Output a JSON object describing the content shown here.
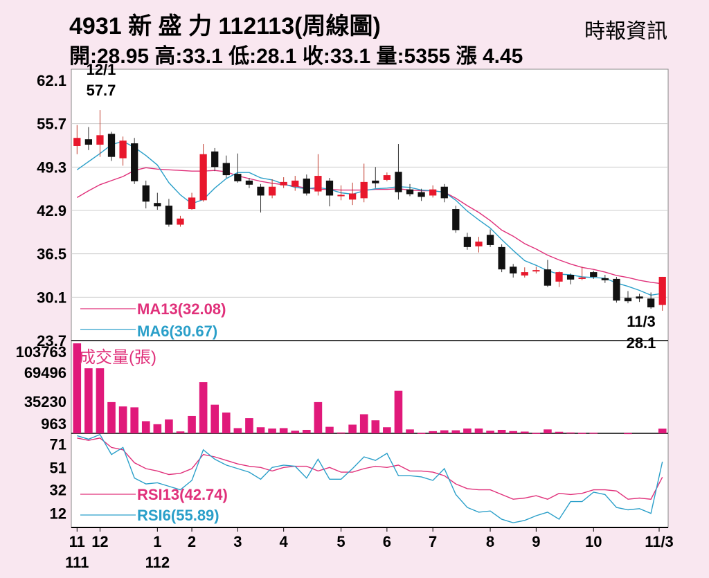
{
  "header": {
    "title": "4931  新 盛 力 112113(周線圖)",
    "source": "時報資訊",
    "stats": "開:28.95 高:33.1 低:28.1 收:33.1 量:5355 漲 4.45"
  },
  "chart_data": [
    {
      "type": "candlestick",
      "panel": "price",
      "y_ticks": [
        "62.1",
        "55.7",
        "49.3",
        "42.9",
        "36.5",
        "30.1",
        "23.7"
      ],
      "ylim": [
        23.7,
        62.1
      ],
      "grid": true,
      "annotations": [
        {
          "date": "12/1",
          "value": "57.7",
          "label": "high"
        },
        {
          "date": "11/3",
          "value": "28.1",
          "label": "low"
        }
      ],
      "legend": [
        {
          "name": "MA13(32.08)",
          "color": "#e0307a"
        },
        {
          "name": "MA6(30.67)",
          "color": "#2a9fc9"
        }
      ],
      "colors": {
        "up": "#e8172c",
        "down": "#111111"
      },
      "candles": [
        [
          52.4,
          53.6,
          55.5,
          51.2
        ],
        [
          53.4,
          52.6,
          55.2,
          51.8
        ],
        [
          52.6,
          54.0,
          57.7,
          50.8
        ],
        [
          54.2,
          50.8,
          54.5,
          50.2
        ],
        [
          50.6,
          53.2,
          53.8,
          49.5
        ],
        [
          52.8,
          47.2,
          53.6,
          46.8
        ],
        [
          46.6,
          44.2,
          47.3,
          43.2
        ],
        [
          44.0,
          43.5,
          45.5,
          43.0
        ],
        [
          43.6,
          40.8,
          44.6,
          40.5
        ],
        [
          40.8,
          41.7,
          42.1,
          40.5
        ],
        [
          43.1,
          44.8,
          45.5,
          43.0
        ],
        [
          44.4,
          51.2,
          52.7,
          44.2
        ],
        [
          51.6,
          49.3,
          52.1,
          48.7
        ],
        [
          49.9,
          48.1,
          51.0,
          47.7
        ],
        [
          48.3,
          47.2,
          51.3,
          47.0
        ],
        [
          47.3,
          46.7,
          47.7,
          46.2
        ],
        [
          46.4,
          45.1,
          46.8,
          42.6
        ],
        [
          45.1,
          46.4,
          47.5,
          44.7
        ],
        [
          46.6,
          47.1,
          47.8,
          46.2
        ],
        [
          46.4,
          47.3,
          48.0,
          45.8
        ],
        [
          47.6,
          45.4,
          48.2,
          45.1
        ],
        [
          45.7,
          48.0,
          51.2,
          45.1
        ],
        [
          47.3,
          45.1,
          47.7,
          43.5
        ],
        [
          45.1,
          45.2,
          46.6,
          44.4
        ],
        [
          44.5,
          45.4,
          47.0,
          43.7
        ],
        [
          44.7,
          47.1,
          49.8,
          44.1
        ],
        [
          47.3,
          46.9,
          49.3,
          46.2
        ],
        [
          47.4,
          48.1,
          48.5,
          47.2
        ],
        [
          48.6,
          45.6,
          52.7,
          44.5
        ],
        [
          46.0,
          45.3,
          46.8,
          45.0
        ],
        [
          45.6,
          44.9,
          46.1,
          44.3
        ],
        [
          45.1,
          46.0,
          46.6,
          44.8
        ],
        [
          46.4,
          44.7,
          46.8,
          44.1
        ],
        [
          43.1,
          40.0,
          43.6,
          39.6
        ],
        [
          39.0,
          37.5,
          39.6,
          37.1
        ],
        [
          37.6,
          38.3,
          39.0,
          36.7
        ],
        [
          39.3,
          37.8,
          40.1,
          37.5
        ],
        [
          37.5,
          34.2,
          37.9,
          33.8
        ],
        [
          34.6,
          33.6,
          35.0,
          33.0
        ],
        [
          33.3,
          33.8,
          34.5,
          33.0
        ],
        [
          34.0,
          34.1,
          34.6,
          33.6
        ],
        [
          34.2,
          31.8,
          35.6,
          31.6
        ],
        [
          32.4,
          33.8,
          33.9,
          31.6
        ],
        [
          33.4,
          32.7,
          33.6,
          32.0
        ],
        [
          32.8,
          33.0,
          34.6,
          32.6
        ],
        [
          33.8,
          33.1,
          34.0,
          32.8
        ],
        [
          32.9,
          32.6,
          33.4,
          32.2
        ],
        [
          32.8,
          29.6,
          33.1,
          29.3
        ],
        [
          30.0,
          29.5,
          31.0,
          29.2
        ],
        [
          30.2,
          29.9,
          30.6,
          29.4
        ],
        [
          29.9,
          28.6,
          30.8,
          28.4
        ],
        [
          28.95,
          33.1,
          33.1,
          28.1
        ]
      ],
      "ma13": [
        44.8,
        45.8,
        46.7,
        47.3,
        47.9,
        48.8,
        49.2,
        49.0,
        48.9,
        48.8,
        48.7,
        48.7,
        48.8,
        48.6,
        48.0,
        47.6,
        47.2,
        46.9,
        46.7,
        46.5,
        46.2,
        46.0,
        46.0,
        45.9,
        45.9,
        45.9,
        46.0,
        46.0,
        46.1,
        45.9,
        45.8,
        45.8,
        45.6,
        44.7,
        43.6,
        42.6,
        41.4,
        40.0,
        39.1,
        38.0,
        37.2,
        36.3,
        35.6,
        35.0,
        34.5,
        34.2,
        33.8,
        33.3,
        33.0,
        32.6,
        32.3,
        32.08
      ],
      "ma6": [
        48.9,
        50.1,
        51.3,
        52.6,
        53.1,
        52.2,
        51.0,
        49.6,
        47.0,
        45.2,
        43.9,
        44.5,
        46.2,
        47.6,
        48.5,
        48.5,
        47.7,
        47.4,
        46.8,
        46.3,
        46.1,
        46.3,
        46.0,
        45.5,
        45.3,
        45.8,
        46.1,
        46.2,
        46.4,
        46.3,
        45.9,
        45.8,
        45.6,
        44.4,
        42.8,
        41.5,
        40.3,
        38.6,
        37.0,
        35.5,
        34.8,
        34.0,
        33.5,
        33.4,
        33.1,
        33.0,
        32.9,
        32.2,
        31.7,
        31.1,
        30.4,
        30.67
      ]
    },
    {
      "type": "bar",
      "panel": "volume",
      "label": "成交量(張)",
      "y_ticks": [
        "103763",
        "69496",
        "35230",
        "963"
      ],
      "color": "#e0197a",
      "values": [
        103763,
        75000,
        75000,
        36000,
        31000,
        30000,
        14000,
        10500,
        16000,
        2200,
        20000,
        59000,
        33000,
        24000,
        6000,
        17500,
        7000,
        5500,
        6000,
        3000,
        4000,
        36000,
        7500,
        1000,
        10000,
        22000,
        15000,
        7000,
        49000,
        4500,
        500,
        2500,
        3500,
        3500,
        5500,
        5500,
        3000,
        4000,
        2600,
        2000,
        500,
        4500,
        1800,
        1000,
        600,
        800,
        0,
        0,
        300,
        0,
        0,
        5355
      ]
    },
    {
      "type": "line",
      "panel": "rsi",
      "y_ticks": [
        "71",
        "51",
        "32",
        "12"
      ],
      "ylim": [
        0,
        80
      ],
      "legend": [
        {
          "name": "RSI13(42.74)",
          "color": "#e0307a"
        },
        {
          "name": "RSI6(55.89)",
          "color": "#2a9fc9"
        }
      ],
      "rsi13": [
        76,
        74,
        76,
        68,
        66,
        55,
        50,
        48,
        45,
        46,
        50,
        62,
        60,
        57,
        54,
        52,
        51,
        48,
        51,
        52,
        52,
        48,
        51,
        47,
        47,
        50,
        52,
        51,
        53,
        48,
        48,
        47,
        44,
        37,
        33,
        32,
        32,
        28,
        24,
        25,
        27,
        24,
        29,
        28,
        29,
        32,
        32,
        31,
        24,
        25,
        24,
        42.74
      ],
      "rsi6": [
        78,
        75,
        79,
        62,
        68,
        42,
        37,
        38,
        35,
        32,
        40,
        66,
        58,
        53,
        50,
        47,
        41,
        51,
        53,
        52,
        42,
        58,
        41,
        41,
        50,
        60,
        57,
        63,
        44,
        44,
        43,
        40,
        50,
        28,
        17,
        13,
        14,
        7,
        4,
        6,
        10,
        13,
        7,
        22,
        22,
        30,
        28,
        17,
        15,
        16,
        12,
        55.89
      ]
    }
  ],
  "x_labels": [
    {
      "index": 0,
      "line1": "11",
      "line2": "111"
    },
    {
      "index": 2,
      "line1": "12",
      "line2": ""
    },
    {
      "index": 7,
      "line1": "1",
      "line2": "112"
    },
    {
      "index": 10,
      "line1": "2",
      "line2": ""
    },
    {
      "index": 14,
      "line1": "3",
      "line2": ""
    },
    {
      "index": 18,
      "line1": "4",
      "line2": ""
    },
    {
      "index": 23,
      "line1": "5",
      "line2": ""
    },
    {
      "index": 27,
      "line1": "6",
      "line2": ""
    },
    {
      "index": 31,
      "line1": "7",
      "line2": ""
    },
    {
      "index": 36,
      "line1": "8",
      "line2": ""
    },
    {
      "index": 40,
      "line1": "9",
      "line2": ""
    },
    {
      "index": 45,
      "line1": "10",
      "line2": ""
    },
    {
      "index": 51,
      "line1": "11/3",
      "line2": ""
    }
  ]
}
